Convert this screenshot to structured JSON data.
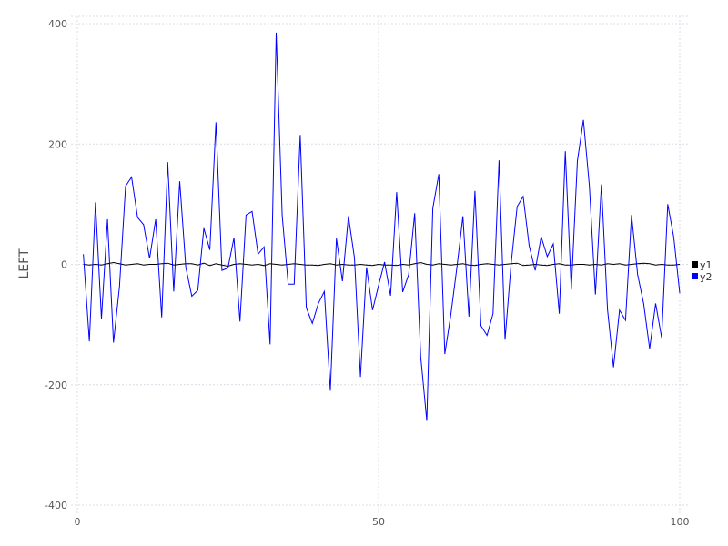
{
  "chart_data": {
    "type": "line",
    "title": "",
    "xlabel": "",
    "ylabel": "LEFT",
    "xlim": [
      0,
      100
    ],
    "ylim": [
      -400,
      400
    ],
    "xticks": [
      "0",
      "50",
      "100"
    ],
    "yticks": [
      "-400",
      "-200",
      "0",
      "200",
      "400"
    ],
    "grid": true,
    "legend_position": "right",
    "series": [
      {
        "name": "y1",
        "color": "#000000",
        "x_start": 1,
        "values": [
          0,
          -1,
          0,
          -1,
          1,
          3,
          1,
          -1,
          0,
          1,
          -1,
          0,
          0,
          1,
          2,
          -1,
          0,
          1,
          1,
          -1,
          2,
          -2,
          1,
          -1,
          -3,
          0,
          1,
          0,
          -1,
          0,
          -2,
          1,
          0,
          -1,
          0,
          1,
          0,
          -1,
          -1,
          -2,
          0,
          1,
          -1,
          0,
          -1,
          -1,
          0,
          -1,
          -2,
          0,
          -1,
          -1,
          -2,
          0,
          -1,
          1,
          3,
          0,
          -1,
          1,
          0,
          -1,
          0,
          1,
          -1,
          -2,
          0,
          1,
          0,
          -1,
          0,
          1,
          2,
          -2,
          -1,
          0,
          -1,
          -2,
          0,
          1,
          -1,
          -1,
          0,
          0,
          -1,
          0,
          -1,
          1,
          0,
          1,
          -1,
          0,
          1,
          2,
          1,
          -1,
          0,
          -1,
          -1,
          0
        ]
      },
      {
        "name": "y2",
        "color": "#0000ff",
        "x_start": 1,
        "values": [
          17,
          -128,
          103,
          -90,
          75,
          -130,
          -37,
          130,
          145,
          78,
          66,
          10,
          75,
          -88,
          170,
          -45,
          138,
          -5,
          -53,
          -43,
          60,
          24,
          236,
          -10,
          -6,
          44,
          -95,
          82,
          88,
          17,
          29,
          -133,
          385,
          81,
          -33,
          -33,
          215,
          -72,
          -98,
          -65,
          -45,
          -210,
          43,
          -28,
          80,
          11,
          -187,
          -5,
          -76,
          -35,
          4,
          -52,
          120,
          -46,
          -17,
          85,
          -153,
          -260,
          93,
          150,
          -149,
          -84,
          -5,
          80,
          -87,
          122,
          -102,
          -118,
          -82,
          173,
          -125,
          0,
          96,
          113,
          31,
          -10,
          46,
          13,
          34,
          -82,
          188,
          -42,
          172,
          240,
          130,
          -50,
          133,
          -75,
          -171,
          -76,
          -93,
          82,
          -17,
          -65,
          -140,
          -65,
          -122,
          100,
          45,
          -48
        ]
      }
    ]
  }
}
